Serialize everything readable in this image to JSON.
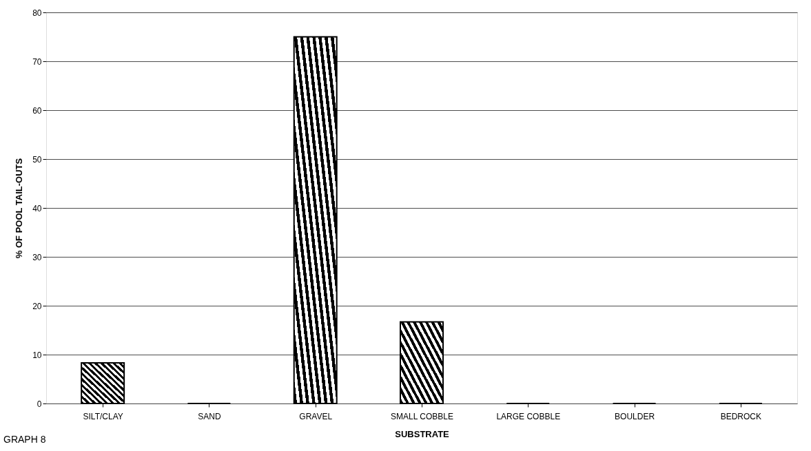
{
  "chart_data": {
    "type": "bar",
    "xlabel": "SUBSTRATE",
    "ylabel": "% OF POOL TAIL-OUTS",
    "categories": [
      "SILT/CLAY",
      "SAND",
      "GRAVEL",
      "SMALL COBBLE",
      "LARGE COBBLE",
      "BOULDER",
      "BEDROCK"
    ],
    "values": [
      8.3,
      0,
      75,
      16.7,
      0,
      0,
      0
    ],
    "color": "#000000",
    "ylim": [
      0,
      80
    ],
    "yticks": [
      0,
      10,
      20,
      30,
      40,
      50,
      60,
      70,
      80
    ],
    "grid": "y",
    "annotations": [
      "GRAPH 8"
    ]
  }
}
